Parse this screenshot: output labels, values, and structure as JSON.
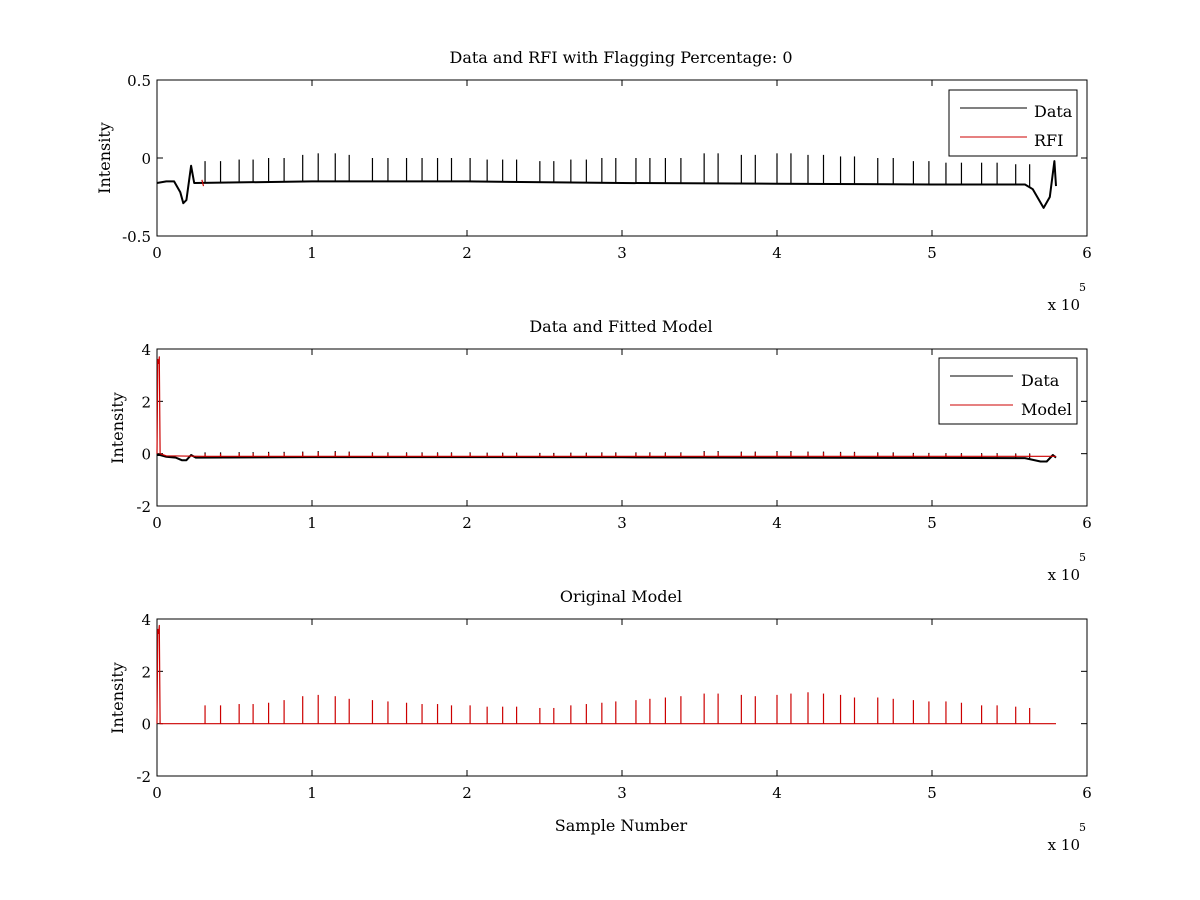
{
  "chart_data": [
    {
      "type": "line",
      "title": "Data and RFI with Flagging Percentage: 0",
      "xlabel": "",
      "ylabel": "Intensity",
      "x_exponent_label": "x 10",
      "x_exponent": "5",
      "xlim": [
        0,
        6
      ],
      "ylim": [
        -0.5,
        0.5
      ],
      "xticks": [
        "0",
        "1",
        "2",
        "3",
        "4",
        "5",
        "6"
      ],
      "yticks": [
        "-0.5",
        "0",
        "0.5"
      ],
      "ytick_values": [
        -0.5,
        0,
        0.5
      ],
      "legend": {
        "position": "top-right",
        "entries": [
          {
            "name": "Data",
            "color": "#000000"
          },
          {
            "name": "RFI",
            "color": "#cc0000"
          }
        ]
      },
      "series": [
        {
          "name": "Data",
          "color": "#000000",
          "baseline": [
            [
              0,
              -0.16
            ],
            [
              0.06,
              -0.15
            ],
            [
              0.11,
              -0.15
            ],
            [
              0.15,
              -0.22
            ],
            [
              0.17,
              -0.29
            ],
            [
              0.19,
              -0.27
            ],
            [
              0.22,
              -0.05
            ],
            [
              0.24,
              -0.16
            ],
            [
              1,
              -0.15
            ],
            [
              2,
              -0.15
            ],
            [
              3,
              -0.16
            ],
            [
              4,
              -0.165
            ],
            [
              5,
              -0.17
            ],
            [
              5.6,
              -0.17
            ],
            [
              5.65,
              -0.2
            ],
            [
              5.72,
              -0.32
            ],
            [
              5.76,
              -0.25
            ],
            [
              5.79,
              -0.02
            ],
            [
              5.8,
              -0.18
            ]
          ],
          "spike_x": [
            0.31,
            0.41,
            0.53,
            0.62,
            0.72,
            0.82,
            0.94,
            1.04,
            1.15,
            1.24,
            1.39,
            1.49,
            1.61,
            1.71,
            1.81,
            1.9,
            2.02,
            2.13,
            2.23,
            2.32,
            2.47,
            2.56,
            2.67,
            2.77,
            2.87,
            2.96,
            3.09,
            3.18,
            3.28,
            3.38,
            3.53,
            3.62,
            3.77,
            3.86,
            4.0,
            4.09,
            4.2,
            4.3,
            4.41,
            4.5,
            4.65,
            4.75,
            4.88,
            4.98,
            5.09,
            5.19,
            5.32,
            5.42,
            5.54,
            5.63
          ],
          "spike_y": [
            -0.02,
            -0.02,
            -0.01,
            -0.01,
            0.0,
            0.0,
            0.02,
            0.03,
            0.03,
            0.02,
            0.0,
            0.0,
            0.0,
            0.0,
            0.0,
            0.0,
            0.0,
            -0.01,
            -0.01,
            -0.01,
            -0.02,
            -0.02,
            -0.01,
            -0.01,
            0.0,
            0.0,
            0.0,
            0.0,
            0.0,
            0.0,
            0.03,
            0.03,
            0.02,
            0.02,
            0.03,
            0.03,
            0.02,
            0.02,
            0.01,
            0.01,
            0.0,
            0.0,
            -0.02,
            -0.02,
            -0.03,
            -0.03,
            -0.03,
            -0.03,
            -0.04,
            -0.04
          ]
        },
        {
          "name": "RFI",
          "color": "#cc0000",
          "points": [
            [
              0.29,
              -0.14
            ],
            [
              0.3,
              -0.18
            ]
          ]
        }
      ]
    },
    {
      "type": "line",
      "title": "Data and Fitted Model",
      "xlabel": "",
      "ylabel": "Intensity",
      "x_exponent_label": "x 10",
      "x_exponent": "5",
      "xlim": [
        0,
        6
      ],
      "ylim": [
        -2,
        4
      ],
      "xticks": [
        "0",
        "1",
        "2",
        "3",
        "4",
        "5",
        "6"
      ],
      "yticks": [
        "-2",
        "0",
        "2",
        "4"
      ],
      "ytick_values": [
        -2,
        0,
        2,
        4
      ],
      "legend": {
        "position": "top-right",
        "entries": [
          {
            "name": "Data",
            "color": "#000000"
          },
          {
            "name": "Model",
            "color": "#cc0000"
          }
        ]
      },
      "series": [
        {
          "name": "Data",
          "color": "#000000",
          "baseline": [
            [
              0,
              -0.05
            ],
            [
              0.02,
              -0.05
            ],
            [
              0.06,
              -0.12
            ],
            [
              0.12,
              -0.15
            ],
            [
              0.16,
              -0.25
            ],
            [
              0.19,
              -0.25
            ],
            [
              0.22,
              -0.05
            ],
            [
              0.25,
              -0.15
            ],
            [
              1,
              -0.13
            ],
            [
              2,
              -0.13
            ],
            [
              3,
              -0.14
            ],
            [
              4,
              -0.15
            ],
            [
              5,
              -0.16
            ],
            [
              5.6,
              -0.17
            ],
            [
              5.7,
              -0.3
            ],
            [
              5.74,
              -0.3
            ],
            [
              5.78,
              -0.05
            ],
            [
              5.8,
              -0.15
            ]
          ],
          "spike_x": [
            0.31,
            0.41,
            0.53,
            0.62,
            0.72,
            0.82,
            0.94,
            1.04,
            1.15,
            1.24,
            1.39,
            1.49,
            1.61,
            1.71,
            1.81,
            1.9,
            2.02,
            2.13,
            2.23,
            2.32,
            2.47,
            2.56,
            2.67,
            2.77,
            2.87,
            2.96,
            3.09,
            3.18,
            3.28,
            3.38,
            3.53,
            3.62,
            3.77,
            3.86,
            4.0,
            4.09,
            4.2,
            4.3,
            4.41,
            4.5,
            4.65,
            4.75,
            4.88,
            4.98,
            5.09,
            5.19,
            5.32,
            5.42,
            5.54,
            5.63
          ],
          "spike_y": [
            0.05,
            0.05,
            0.06,
            0.06,
            0.07,
            0.07,
            0.08,
            0.1,
            0.1,
            0.08,
            0.05,
            0.05,
            0.05,
            0.05,
            0.05,
            0.05,
            0.05,
            0.04,
            0.04,
            0.04,
            0.03,
            0.03,
            0.04,
            0.04,
            0.05,
            0.05,
            0.05,
            0.05,
            0.05,
            0.05,
            0.1,
            0.1,
            0.08,
            0.08,
            0.1,
            0.1,
            0.08,
            0.08,
            0.07,
            0.07,
            0.05,
            0.05,
            0.03,
            0.03,
            0.02,
            0.02,
            0.02,
            0.02,
            0.01,
            0.01
          ]
        },
        {
          "name": "Model",
          "color": "#cc0000",
          "points": [
            [
              0,
              0.0
            ],
            [
              0.005,
              3.6
            ],
            [
              0.01,
              3.45
            ],
            [
              0.015,
              3.7
            ],
            [
              0.02,
              0.0
            ],
            [
              0.06,
              -0.08
            ],
            [
              0.3,
              -0.1
            ],
            [
              1,
              -0.1
            ],
            [
              2,
              -0.1
            ],
            [
              3,
              -0.1
            ],
            [
              4,
              -0.1
            ],
            [
              5,
              -0.1
            ],
            [
              5.8,
              -0.1
            ]
          ],
          "spike_x": [
            0.31,
            0.41,
            0.53,
            0.62,
            0.72,
            0.82,
            0.94,
            1.04,
            1.15,
            1.24,
            1.39,
            1.49,
            1.61,
            1.71,
            1.81,
            1.9,
            2.02,
            2.13,
            2.23,
            2.32,
            2.47,
            2.56,
            2.67,
            2.77,
            2.87,
            2.96,
            3.09,
            3.18,
            3.28,
            3.38,
            3.53,
            3.62,
            3.77,
            3.86,
            4.0,
            4.09,
            4.2,
            4.3,
            4.41,
            4.5,
            4.65,
            4.75,
            4.88,
            4.98,
            5.09,
            5.19,
            5.32,
            5.42,
            5.54,
            5.63
          ],
          "spike_y": [
            0.0,
            0.0,
            0.02,
            0.02,
            0.03,
            0.03,
            0.05,
            0.06,
            0.06,
            0.05,
            0.02,
            0.02,
            0.02,
            0.02,
            0.02,
            0.02,
            0.02,
            0.01,
            0.01,
            0.01,
            0.0,
            0.0,
            0.01,
            0.01,
            0.02,
            0.02,
            0.02,
            0.02,
            0.02,
            0.02,
            0.06,
            0.06,
            0.05,
            0.05,
            0.06,
            0.06,
            0.05,
            0.05,
            0.04,
            0.04,
            0.02,
            0.02,
            0.0,
            0.0,
            -0.01,
            -0.01,
            -0.01,
            -0.01,
            -0.02,
            -0.02
          ]
        }
      ]
    },
    {
      "type": "line",
      "title": "Original Model",
      "xlabel": "Sample Number",
      "ylabel": "Intensity",
      "x_exponent_label": "x 10",
      "x_exponent": "5",
      "xlim": [
        0,
        6
      ],
      "ylim": [
        -2,
        4
      ],
      "xticks": [
        "0",
        "1",
        "2",
        "3",
        "4",
        "5",
        "6"
      ],
      "yticks": [
        "-2",
        "0",
        "2",
        "4"
      ],
      "ytick_values": [
        -2,
        0,
        2,
        4
      ],
      "series": [
        {
          "color": "#cc0000",
          "points": [
            [
              0,
              0.0
            ],
            [
              0.005,
              3.6
            ],
            [
              0.01,
              3.45
            ],
            [
              0.015,
              3.75
            ],
            [
              0.02,
              0.0
            ],
            [
              5.8,
              0.0
            ]
          ],
          "spike_x": [
            0.31,
            0.41,
            0.53,
            0.62,
            0.72,
            0.82,
            0.94,
            1.04,
            1.15,
            1.24,
            1.39,
            1.49,
            1.61,
            1.71,
            1.81,
            1.9,
            2.02,
            2.13,
            2.23,
            2.32,
            2.47,
            2.56,
            2.67,
            2.77,
            2.87,
            2.96,
            3.09,
            3.18,
            3.28,
            3.38,
            3.53,
            3.62,
            3.77,
            3.86,
            4.0,
            4.09,
            4.2,
            4.3,
            4.41,
            4.5,
            4.65,
            4.75,
            4.88,
            4.98,
            5.09,
            5.19,
            5.32,
            5.42,
            5.54,
            5.63
          ],
          "spike_y": [
            0.7,
            0.7,
            0.75,
            0.75,
            0.8,
            0.9,
            1.05,
            1.1,
            1.05,
            0.95,
            0.9,
            0.85,
            0.8,
            0.75,
            0.75,
            0.7,
            0.7,
            0.65,
            0.65,
            0.65,
            0.6,
            0.6,
            0.7,
            0.75,
            0.8,
            0.85,
            0.9,
            0.95,
            1.0,
            1.05,
            1.15,
            1.15,
            1.1,
            1.05,
            1.1,
            1.15,
            1.2,
            1.15,
            1.1,
            1.0,
            1.0,
            0.95,
            0.9,
            0.85,
            0.85,
            0.8,
            0.7,
            0.7,
            0.65,
            0.6
          ]
        }
      ]
    }
  ]
}
